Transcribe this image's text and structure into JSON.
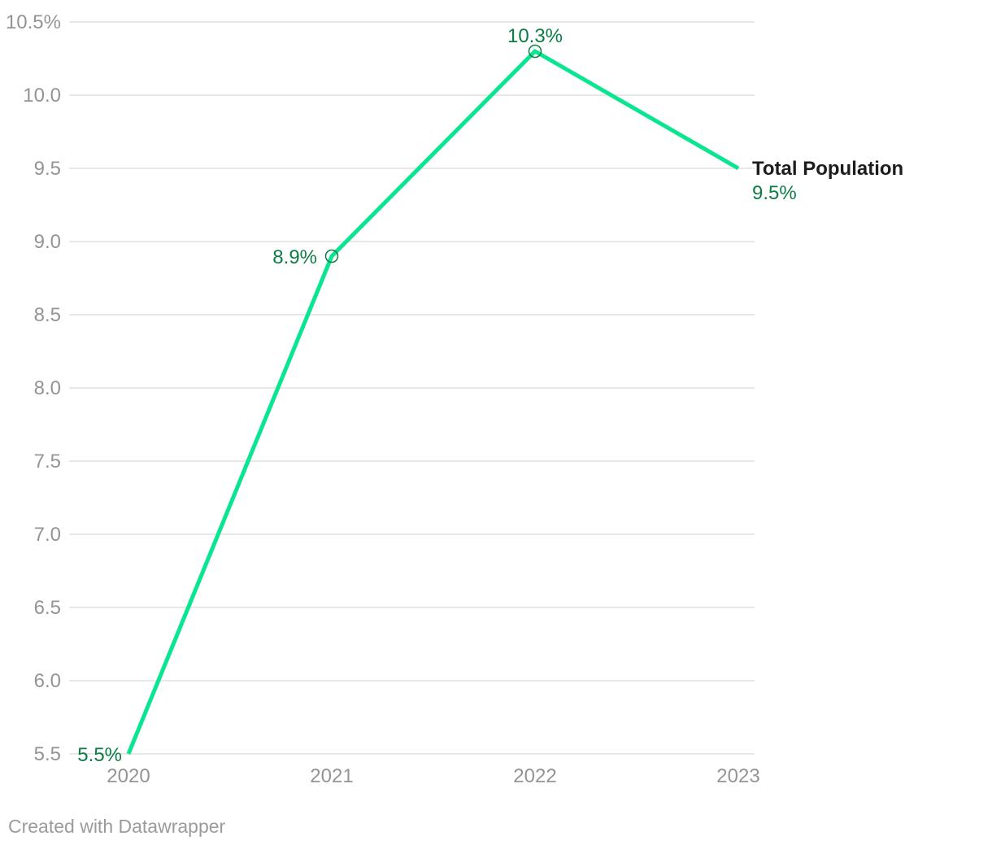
{
  "chart_data": {
    "type": "line",
    "x": [
      "2020",
      "2021",
      "2022",
      "2023"
    ],
    "series": [
      {
        "name": "Total Population",
        "values": [
          5.5,
          8.9,
          10.3,
          9.5
        ]
      }
    ],
    "point_labels": [
      "5.5%",
      "8.9%",
      "10.3%",
      "9.5%"
    ],
    "label_positions": [
      "left",
      "left",
      "above",
      "legend"
    ],
    "markers": [
      false,
      true,
      true,
      false
    ],
    "y_ticks": [
      {
        "label": "10.5%",
        "value": 10.5
      },
      {
        "label": "10.0",
        "value": 10.0
      },
      {
        "label": "9.5",
        "value": 9.5
      },
      {
        "label": "9.0",
        "value": 9.0
      },
      {
        "label": "8.5",
        "value": 8.5
      },
      {
        "label": "8.0",
        "value": 8.0
      },
      {
        "label": "7.5",
        "value": 7.5
      },
      {
        "label": "7.0",
        "value": 7.0
      },
      {
        "label": "6.5",
        "value": 6.5
      },
      {
        "label": "6.0",
        "value": 6.0
      },
      {
        "label": "5.5",
        "value": 5.5
      }
    ],
    "ylim": [
      5.5,
      10.5
    ],
    "grid": true,
    "title": "",
    "xlabel": "",
    "ylabel": "",
    "legend_position": "right-of-line-end"
  },
  "legend": {
    "title": "Total Population",
    "value": "9.5%"
  },
  "footer": {
    "text": "Created with Datawrapper"
  },
  "colors": {
    "line": "#0ae591",
    "label_green": "#0c7d44",
    "marker_stroke": "#0c7d44",
    "tick_text": "#949494",
    "grid": "#e8e8e8",
    "legend_title": "#1d1d1d",
    "footer_text": "#9b9b9b"
  }
}
